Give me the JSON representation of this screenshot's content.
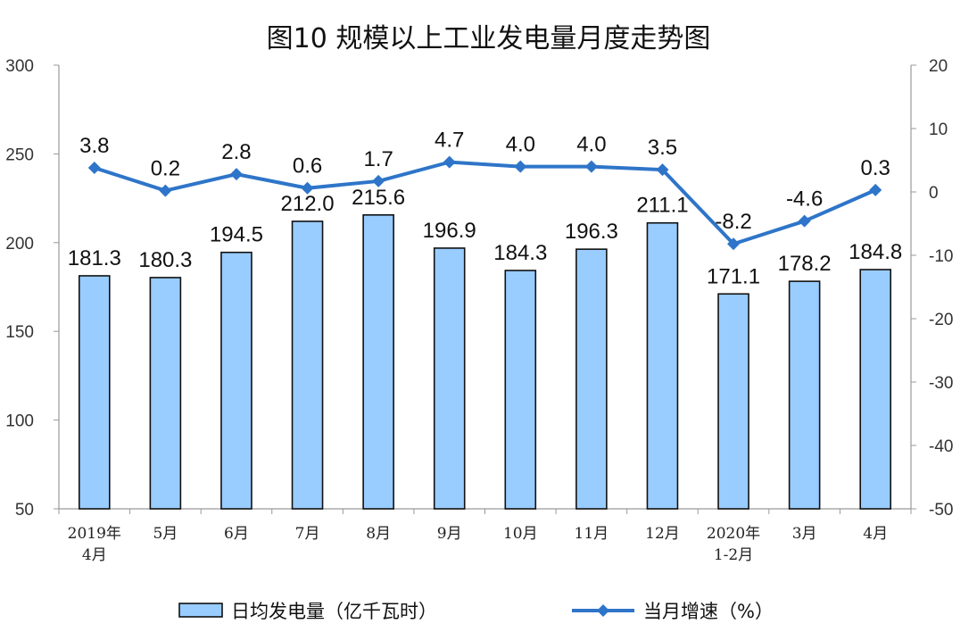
{
  "chart_data": {
    "type": "bar",
    "title": "图10 规模以上工业发电量月度走势图",
    "categories": [
      [
        "2019年",
        "4月"
      ],
      [
        "5月"
      ],
      [
        "6月"
      ],
      [
        "7月"
      ],
      [
        "8月"
      ],
      [
        "9月"
      ],
      [
        "10月"
      ],
      [
        "11月"
      ],
      [
        "12月"
      ],
      [
        "2020年",
        "1-2月"
      ],
      [
        "3月"
      ],
      [
        "4月"
      ]
    ],
    "series": [
      {
        "name": "日均发电量（亿千瓦时）",
        "type": "bar",
        "axis": "left",
        "color": "#99ccff",
        "values": [
          181.3,
          180.3,
          194.5,
          212.0,
          215.6,
          196.9,
          184.3,
          196.3,
          211.1,
          171.1,
          178.2,
          184.8
        ]
      },
      {
        "name": "当月增速（%）",
        "type": "line",
        "axis": "right",
        "color": "#2e75c9",
        "values": [
          3.8,
          0.2,
          2.8,
          0.6,
          1.7,
          4.7,
          4.0,
          4.0,
          3.5,
          -8.2,
          -4.6,
          0.3
        ]
      }
    ],
    "left_axis": {
      "min": 50,
      "max": 300,
      "ticks": [
        50,
        100,
        150,
        200,
        250,
        300
      ]
    },
    "right_axis": {
      "min": -50,
      "max": 20,
      "ticks": [
        -50,
        -40,
        -30,
        -20,
        -10,
        0,
        10,
        20
      ]
    },
    "legend_position": "bottom",
    "grid": false
  }
}
